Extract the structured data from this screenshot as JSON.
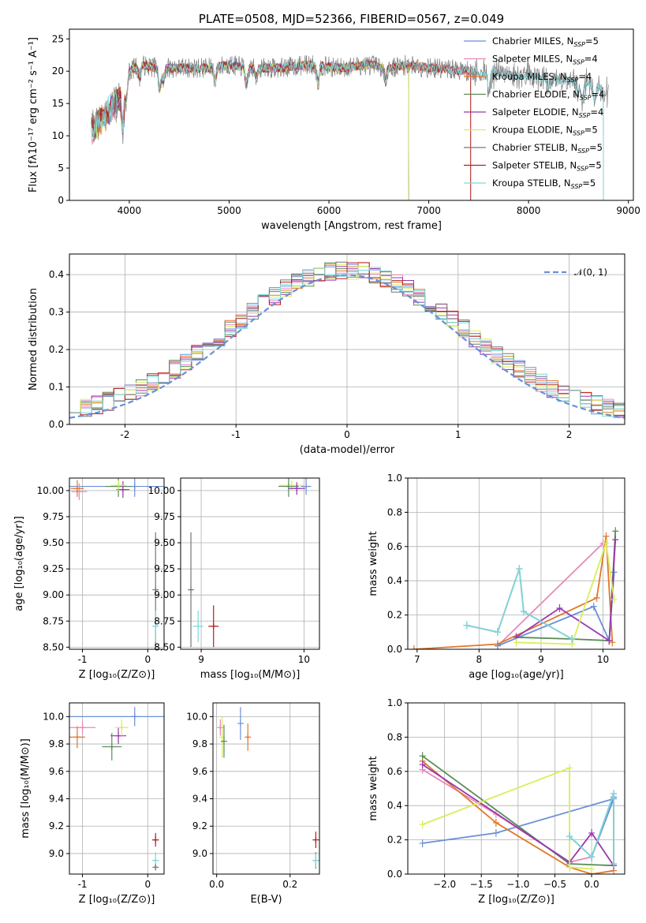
{
  "colors": {
    "chabrier_miles": "#6a8fd8",
    "salpeter_miles": "#e889b9",
    "kroupa_miles": "#e0782a",
    "chabrier_elodie": "#5a8c58",
    "salpeter_elodie": "#9a36b0",
    "kroupa_elodie": "#d6ef5a",
    "chabrier_stelib": "#777777",
    "salpeter_stelib": "#b22020",
    "kroupa_stelib": "#7fd8dc",
    "data": "#808080",
    "gaussian": "#6a8fd8"
  },
  "chart_data": [
    {
      "id": "spectrum",
      "type": "line",
      "title": "PLATE=0508, MJD=52366, FIBERID=0567, z=0.049",
      "xlabel": "wavelength [Angstrom, rest frame]",
      "ylabel": "Flux [fλ10⁻¹⁷ erg cm⁻² s⁻¹ A⁻¹]",
      "xlim": [
        3400,
        9050
      ],
      "ylim": [
        0,
        26.5
      ],
      "xticks": [
        4000,
        5000,
        6000,
        7000,
        8000,
        9000
      ],
      "yticks": [
        0,
        5,
        10,
        15,
        20,
        25
      ],
      "legend_position": "upper-right",
      "continuum": {
        "x": [
          3620,
          3700,
          3800,
          3900,
          4000,
          4100,
          4300,
          4500,
          4800,
          5000,
          5200,
          5500,
          5800,
          6100,
          6400,
          6600,
          6800,
          7000,
          7200,
          7400,
          7600,
          7800,
          8000,
          8200,
          8400,
          8600,
          8800
        ],
        "y": [
          12.5,
          14,
          16,
          18,
          20,
          21,
          20.5,
          20.5,
          20.5,
          21,
          20.5,
          20.5,
          21,
          20.5,
          21,
          20.5,
          21,
          20.5,
          20.3,
          20,
          19.8,
          19.5,
          19.2,
          19,
          18.5,
          18,
          16.5
        ]
      },
      "series": [
        {
          "name": "Chabrier MILES, N_SSP=5",
          "key": "chabrier_miles",
          "xmax": 7420
        },
        {
          "name": "Salpeter MILES, N_SSP=4",
          "key": "salpeter_miles",
          "xmax": 7420
        },
        {
          "name": "Kroupa MILES, N_SSP=4",
          "key": "kroupa_miles",
          "xmax": 7420
        },
        {
          "name": "Chabrier ELODIE, N_SSP=4",
          "key": "chabrier_elodie",
          "xmax": 6800
        },
        {
          "name": "Salpeter ELODIE, N_SSP=4",
          "key": "salpeter_elodie",
          "xmax": 6800
        },
        {
          "name": "Kroupa ELODIE, N_SSP=5",
          "key": "kroupa_elodie",
          "xmax": 6800
        },
        {
          "name": "Chabrier STELIB, N_SSP=5",
          "key": "chabrier_stelib",
          "xmax": 8750
        },
        {
          "name": "Salpeter STELIB, N_SSP=5",
          "key": "salpeter_stelib",
          "xmax": 7420
        },
        {
          "name": "Kroupa STELIB, N_SSP=5",
          "key": "kroupa_stelib",
          "xmax": 8750
        }
      ]
    },
    {
      "id": "residuals",
      "type": "histogram",
      "xlabel": "(data-model)/error",
      "ylabel": "Normed distribution",
      "xlim": [
        -2.5,
        2.5
      ],
      "ylim": [
        0,
        0.455
      ],
      "xticks": [
        -2,
        -1,
        0,
        1,
        2
      ],
      "yticks": [
        0.0,
        0.1,
        0.2,
        0.3,
        0.4
      ],
      "gaussian_label": "𝒩(0, 1)",
      "legend_position": "upper-right"
    },
    {
      "id": "age_vs_Z",
      "type": "scatter",
      "xlabel": "Z [log₁₀(Z/Z⊙)]",
      "ylabel": "age  [log₁₀(age/yr)]",
      "xlim": [
        -1.2,
        0.25
      ],
      "ylim": [
        8.48,
        10.12
      ],
      "xticks": [
        -1,
        0
      ],
      "yticks": [
        8.5,
        8.75,
        9.0,
        9.25,
        9.5,
        9.75,
        10.0
      ],
      "points": [
        {
          "key": "chabrier_miles",
          "x": -0.2,
          "y": 10.04,
          "xerr": 1.0,
          "yerr": 0.1
        },
        {
          "key": "salpeter_miles",
          "x": -1.05,
          "y": 9.99,
          "xerr": 0.12,
          "yerr": 0.08
        },
        {
          "key": "kroupa_miles",
          "x": -1.08,
          "y": 10.02,
          "xerr": 0.1,
          "yerr": 0.08
        },
        {
          "key": "chabrier_elodie",
          "x": -0.45,
          "y": 10.04,
          "xerr": 0.2,
          "yerr": 0.1
        },
        {
          "key": "salpeter_elodie",
          "x": -0.38,
          "y": 10.01,
          "xerr": 0.1,
          "yerr": 0.08
        },
        {
          "key": "kroupa_elodie",
          "x": -0.45,
          "y": 10.05,
          "xerr": 0.12,
          "yerr": 0.05
        },
        {
          "key": "chabrier_stelib",
          "x": 0.12,
          "y": 9.05,
          "xerr": 0.02,
          "yerr": 0.55
        },
        {
          "key": "kroupa_stelib",
          "x": 0.12,
          "y": 8.7,
          "xerr": 0.05,
          "yerr": 0.15
        }
      ]
    },
    {
      "id": "age_vs_mass",
      "type": "scatter",
      "xlabel": "mass [log₁₀(M/M⊙)]",
      "ylabel": "",
      "xlim": [
        8.8,
        10.15
      ],
      "ylim": [
        8.48,
        10.12
      ],
      "xticks": [
        9,
        10
      ],
      "yticks": [
        8.5,
        8.75,
        9.0,
        9.25,
        9.5,
        9.75,
        10.0
      ],
      "points": [
        {
          "key": "chabrier_miles",
          "x": 10.02,
          "y": 10.04,
          "xerr": 0.05,
          "yerr": 0.08
        },
        {
          "key": "kroupa_elodie",
          "x": 9.88,
          "y": 10.05,
          "xerr": 0.12,
          "yerr": 0.05
        },
        {
          "key": "chabrier_elodie",
          "x": 9.85,
          "y": 10.04,
          "xerr": 0.1,
          "yerr": 0.1
        },
        {
          "key": "salpeter_elodie",
          "x": 9.93,
          "y": 10.02,
          "xerr": 0.08,
          "yerr": 0.06
        },
        {
          "key": "chabrier_stelib",
          "x": 8.9,
          "y": 9.05,
          "xerr": 0.02,
          "yerr": 0.55
        },
        {
          "key": "kroupa_stelib",
          "x": 8.97,
          "y": 8.7,
          "xerr": 0.05,
          "yerr": 0.15
        },
        {
          "key": "salpeter_stelib",
          "x": 9.12,
          "y": 8.7,
          "xerr": 0.05,
          "yerr": 0.2
        }
      ]
    },
    {
      "id": "weight_vs_age",
      "type": "line",
      "xlabel": "age  [log₁₀(age/yr)]",
      "ylabel": "mass weight",
      "xlim": [
        6.85,
        10.35
      ],
      "ylim": [
        0,
        1
      ],
      "xticks": [
        7,
        8,
        9,
        10
      ],
      "yticks": [
        0.0,
        0.2,
        0.4,
        0.6,
        0.8,
        1.0
      ],
      "series": [
        {
          "key": "salpeter_miles",
          "x": [
            8.3,
            10.0
          ],
          "y": [
            0.02,
            0.62
          ]
        },
        {
          "key": "kroupa_miles",
          "x": [
            6.95,
            8.3,
            9.9,
            10.05,
            10.15
          ],
          "y": [
            0.0,
            0.03,
            0.3,
            0.66,
            0.04
          ]
        },
        {
          "key": "chabrier_miles",
          "x": [
            8.3,
            9.85,
            10.1,
            10.18
          ],
          "y": [
            0.02,
            0.25,
            0.05,
            0.45
          ]
        },
        {
          "key": "chabrier_elodie",
          "x": [
            8.6,
            9.5,
            10.1,
            10.2
          ],
          "y": [
            0.07,
            0.06,
            0.05,
            0.69
          ]
        },
        {
          "key": "salpeter_elodie",
          "x": [
            8.6,
            9.3,
            10.1,
            10.2
          ],
          "y": [
            0.07,
            0.24,
            0.05,
            0.64
          ]
        },
        {
          "key": "kroupa_elodie",
          "x": [
            8.6,
            9.5,
            10.05,
            10.18
          ],
          "y": [
            0.04,
            0.03,
            0.62,
            0.29
          ]
        },
        {
          "key": "chabrier_stelib",
          "x": [
            7.8,
            8.3,
            8.65,
            8.72,
            9.5
          ],
          "y": [
            0.14,
            0.1,
            0.47,
            0.22,
            0.06
          ]
        },
        {
          "key": "kroupa_stelib",
          "x": [
            7.8,
            8.3,
            8.65,
            8.72,
            9.5
          ],
          "y": [
            0.14,
            0.1,
            0.47,
            0.22,
            0.06
          ]
        }
      ]
    },
    {
      "id": "mass_vs_Z",
      "type": "scatter",
      "xlabel": "Z [log₁₀(Z/Z⊙)]",
      "ylabel": "mass [log₁₀(M/M⊙)]",
      "xlim": [
        -1.2,
        0.25
      ],
      "ylim": [
        8.85,
        10.1
      ],
      "xticks": [
        -1,
        0
      ],
      "yticks": [
        9.0,
        9.2,
        9.4,
        9.6,
        9.8,
        10.0
      ],
      "points": [
        {
          "key": "chabrier_miles",
          "x": -0.2,
          "y": 10.0,
          "xerr": 1.0,
          "yerr": 0.07
        },
        {
          "key": "salpeter_miles",
          "x": -1.0,
          "y": 9.92,
          "xerr": 0.2,
          "yerr": 0.05
        },
        {
          "key": "kroupa_miles",
          "x": -1.08,
          "y": 9.85,
          "xerr": 0.12,
          "yerr": 0.08
        },
        {
          "key": "chabrier_elodie",
          "x": -0.55,
          "y": 9.78,
          "xerr": 0.15,
          "yerr": 0.1
        },
        {
          "key": "salpeter_elodie",
          "x": -0.45,
          "y": 9.86,
          "xerr": 0.12,
          "yerr": 0.06
        },
        {
          "key": "kroupa_elodie",
          "x": -0.4,
          "y": 9.92,
          "xerr": 0.1,
          "yerr": 0.06
        },
        {
          "key": "salpeter_stelib",
          "x": 0.12,
          "y": 9.1,
          "xerr": 0.05,
          "yerr": 0.05
        },
        {
          "key": "kroupa_stelib",
          "x": 0.12,
          "y": 8.95,
          "xerr": 0.05,
          "yerr": 0.06
        },
        {
          "key": "chabrier_stelib",
          "x": 0.12,
          "y": 8.9,
          "xerr": 0.03,
          "yerr": 0.02
        }
      ]
    },
    {
      "id": "mass_vs_EBV",
      "type": "scatter",
      "xlabel": "E(B-V)",
      "ylabel": "",
      "xlim": [
        -0.01,
        0.28
      ],
      "ylim": [
        8.85,
        10.1
      ],
      "xticks": [
        0.0,
        0.2
      ],
      "xtick_labels": [
        "0.0",
        "0.2"
      ],
      "yticks": [
        9.0,
        9.2,
        9.4,
        9.6,
        9.8,
        10.0
      ],
      "points": [
        {
          "key": "salpeter_miles",
          "x": 0.01,
          "y": 9.92,
          "xerr": 0.0,
          "yerr": 0.06
        },
        {
          "key": "kroupa_elodie",
          "x": 0.015,
          "y": 9.85,
          "xerr": 0.0,
          "yerr": 0.15
        },
        {
          "key": "chabrier_elodie",
          "x": 0.02,
          "y": 9.82,
          "xerr": 0.0,
          "yerr": 0.12
        },
        {
          "key": "chabrier_miles",
          "x": 0.065,
          "y": 9.95,
          "xerr": 0.0,
          "yerr": 0.12
        },
        {
          "key": "kroupa_miles",
          "x": 0.085,
          "y": 9.85,
          "xerr": 0.0,
          "yerr": 0.1
        },
        {
          "key": "salpeter_stelib",
          "x": 0.27,
          "y": 9.1,
          "xerr": 0.0,
          "yerr": 0.06
        },
        {
          "key": "chabrier_stelib",
          "x": 0.27,
          "y": 8.95,
          "xerr": 0.0,
          "yerr": 0.06
        },
        {
          "key": "kroupa_stelib",
          "x": 0.27,
          "y": 8.95,
          "xerr": 0.0,
          "yerr": 0.05
        }
      ]
    },
    {
      "id": "weight_vs_Z",
      "type": "line",
      "xlabel": "Z [log₁₀(Z/Z⊙)]",
      "ylabel": "mass weight",
      "xlim": [
        -2.5,
        0.45
      ],
      "ylim": [
        0,
        1
      ],
      "xticks": [
        -2.0,
        -1.5,
        -1.0,
        -0.5,
        0.0
      ],
      "xtick_labels": [
        "−2.0",
        "−1.5",
        "−1.0",
        "−0.5",
        "0.0"
      ],
      "yticks": [
        0.0,
        0.2,
        0.4,
        0.6,
        0.8,
        1.0
      ],
      "series": [
        {
          "key": "chabrier_miles",
          "x": [
            -2.3,
            -1.3,
            0.3,
            0.0,
            0.3
          ],
          "y": [
            0.18,
            0.24,
            0.44,
            0.1,
            0.45
          ]
        },
        {
          "key": "salpeter_miles",
          "x": [
            -2.3,
            -1.3,
            -0.3,
            0.0
          ],
          "y": [
            0.61,
            0.35,
            0.07,
            0.1
          ]
        },
        {
          "key": "kroupa_miles",
          "x": [
            -2.3,
            -1.3,
            -0.3,
            0.0,
            0.3
          ],
          "y": [
            0.66,
            0.3,
            0.04,
            0.0,
            0.02
          ]
        },
        {
          "key": "chabrier_elodie",
          "x": [
            -2.3,
            -0.3,
            0.3
          ],
          "y": [
            0.69,
            0.06,
            0.05
          ]
        },
        {
          "key": "salpeter_elodie",
          "x": [
            -2.3,
            -0.3,
            0.0,
            0.3
          ],
          "y": [
            0.64,
            0.07,
            0.24,
            0.05
          ]
        },
        {
          "key": "kroupa_elodie",
          "x": [
            -2.3,
            -0.3,
            -0.3,
            0.0
          ],
          "y": [
            0.29,
            0.62,
            0.04,
            0.03
          ]
        },
        {
          "key": "chabrier_stelib",
          "x": [
            -0.3,
            0.0,
            0.3,
            0.3
          ],
          "y": [
            0.22,
            0.1,
            0.47,
            0.06
          ]
        },
        {
          "key": "kroupa_stelib",
          "x": [
            -0.3,
            0.0,
            0.3,
            0.3
          ],
          "y": [
            0.22,
            0.1,
            0.47,
            0.06
          ]
        }
      ]
    }
  ]
}
